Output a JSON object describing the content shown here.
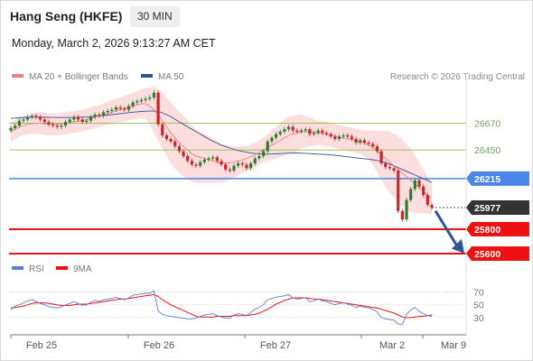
{
  "header": {
    "title": "Hang Seng (HKFE)",
    "interval": "30 MIN",
    "datetime": "Monday, March 2, 2026 9:13:27 AM CET"
  },
  "legend": {
    "ma20": "MA 20 + Bollinger Bands",
    "ma50": "MA 50",
    "research": "Research © 2026 Trading Central"
  },
  "rsi_legend": {
    "rsi": "RSI",
    "ma": "9MA"
  },
  "colors": {
    "ma20": "#f08080",
    "ma50": "#2f5597",
    "candle_up": "#2e7d32",
    "candle_down": "#c62828",
    "support": "#ee1111",
    "pivot": "#4a86e8",
    "resistance": "#8bc34a",
    "bands": "#fbd3d3",
    "rsi": "#5b7fe0"
  },
  "chart_data": [
    {
      "type": "candlestick",
      "title": "Hang Seng (HKFE)",
      "ylim": [
        25570,
        26940
      ],
      "x_ticks": [
        "Feb 25",
        "Feb 26",
        "Feb 27",
        "Mar 2",
        "Mar 9"
      ],
      "levels": [
        {
          "value": 26670,
          "label": "26670",
          "kind": "resistance"
        },
        {
          "value": 26450,
          "label": "26450",
          "kind": "resistance"
        },
        {
          "value": 26215,
          "label": "26215",
          "kind": "pivot"
        },
        {
          "value": 25977,
          "label": "25977",
          "kind": "last"
        },
        {
          "value": 25800,
          "label": "25800",
          "kind": "support"
        },
        {
          "value": 25600,
          "label": "25600",
          "kind": "support"
        }
      ],
      "close": [
        26630,
        26650,
        26690,
        26700,
        26720,
        26730,
        26720,
        26700,
        26680,
        26660,
        26650,
        26640,
        26650,
        26680,
        26700,
        26720,
        26700,
        26680,
        26690,
        26720,
        26740,
        26730,
        26760,
        26770,
        26780,
        26800,
        26790,
        26780,
        26810,
        26840,
        26850,
        26860,
        26870,
        26880,
        26920,
        26660,
        26570,
        26540,
        26520,
        26480,
        26440,
        26400,
        26360,
        26330,
        26320,
        26350,
        26370,
        26380,
        26390,
        26360,
        26330,
        26290,
        26280,
        26320,
        26340,
        26330,
        26300,
        26340,
        26380,
        26400,
        26440,
        26520,
        26550,
        26580,
        26600,
        26620,
        26640,
        26610,
        26600,
        26610,
        26620,
        26580,
        26590,
        26610,
        26590,
        26580,
        26560,
        26540,
        26560,
        26570,
        26560,
        26540,
        26510,
        26530,
        26510,
        26500,
        26480,
        26440,
        26340,
        26310,
        26300,
        26280,
        25950,
        25880,
        26040,
        26130,
        26200,
        26150,
        26080,
        26000,
        25977
      ],
      "ma20": [
        26600,
        26620,
        26640,
        26650,
        26660,
        26665,
        26670,
        26670,
        26665,
        26660,
        26660,
        26660,
        26665,
        26670,
        26675,
        26680,
        26685,
        26690,
        26700,
        26710,
        26720,
        26730,
        26740,
        26750,
        26760,
        26770,
        26780,
        26790,
        26800,
        26810,
        26820,
        26830,
        26830,
        26810,
        26780,
        26740,
        26690,
        26640,
        26590,
        26550,
        26510,
        26480,
        26450,
        26420,
        26400,
        26390,
        26380,
        26370,
        26360,
        26350,
        26340,
        26340,
        26345,
        26350,
        26360,
        26370,
        26380,
        26395,
        26410,
        26430,
        26450,
        26470,
        26490,
        26510,
        26530,
        26550,
        26570,
        26580,
        26590,
        26600,
        26600,
        26600,
        26595,
        26590,
        26585,
        26580,
        26575,
        26565,
        26555,
        26545,
        26540,
        26535,
        26525,
        26515,
        26505,
        26490,
        26470,
        26440,
        26410,
        26380,
        26350,
        26320,
        26290,
        26260,
        26230,
        26200,
        26170,
        26140,
        26110,
        26080,
        26050
      ],
      "bb_width": [
        80,
        80,
        80,
        80,
        80,
        85,
        90,
        90,
        90,
        90,
        90,
        90,
        90,
        90,
        90,
        90,
        90,
        90,
        90,
        90,
        90,
        90,
        90,
        95,
        100,
        100,
        100,
        105,
        110,
        110,
        115,
        120,
        130,
        150,
        190,
        210,
        230,
        240,
        250,
        250,
        250,
        250,
        240,
        230,
        220,
        210,
        200,
        190,
        180,
        170,
        160,
        150,
        140,
        130,
        120,
        110,
        100,
        100,
        100,
        100,
        100,
        110,
        120,
        130,
        140,
        150,
        150,
        150,
        150,
        140,
        130,
        120,
        110,
        100,
        100,
        100,
        100,
        100,
        100,
        100,
        100,
        100,
        100,
        100,
        110,
        120,
        140,
        170,
        200,
        230,
        250,
        260,
        270,
        270,
        270,
        260,
        240,
        210,
        180,
        150,
        130
      ],
      "ma50": [
        26710,
        26712,
        26714,
        26716,
        26718,
        26719,
        26720,
        26720,
        26719,
        26718,
        26717,
        26716,
        26716,
        26716,
        26716,
        26717,
        26718,
        26719,
        26720,
        26722,
        26725,
        26728,
        26732,
        26736,
        26740,
        26744,
        26748,
        26752,
        26756,
        26760,
        26763,
        26766,
        26768,
        26769,
        26770,
        26765,
        26755,
        26740,
        26722,
        26702,
        26680,
        26660,
        26640,
        26620,
        26600,
        26580,
        26560,
        26540,
        26523,
        26506,
        26490,
        26478,
        26466,
        26455,
        26446,
        26438,
        26432,
        26426,
        26421,
        26418,
        26416,
        26416,
        26417,
        26418,
        26420,
        26422,
        26424,
        26425,
        26425,
        26424,
        26422,
        26420,
        26418,
        26416,
        26414,
        26412,
        26410,
        26406,
        26402,
        26398,
        26394,
        26390,
        26386,
        26382,
        26378,
        26374,
        26370,
        26364,
        26355,
        26345,
        26334,
        26320,
        26306,
        26290,
        26275,
        26260,
        26245,
        26230,
        26215,
        26200,
        26185
      ]
    },
    {
      "type": "line",
      "title": "RSI",
      "ylim": [
        10,
        85
      ],
      "y_ticks": [
        70,
        50,
        30
      ],
      "series": [
        {
          "name": "RSI",
          "values": [
            42,
            48,
            50,
            53,
            56,
            58,
            55,
            52,
            50,
            47,
            46,
            45,
            47,
            50,
            52,
            55,
            52,
            49,
            50,
            54,
            57,
            55,
            58,
            59,
            60,
            62,
            60,
            58,
            61,
            65,
            66,
            67,
            68,
            68,
            72,
            40,
            35,
            33,
            32,
            31,
            30,
            29,
            28,
            28,
            29,
            32,
            34,
            35,
            36,
            33,
            31,
            29,
            29,
            34,
            36,
            35,
            33,
            38,
            43,
            46,
            50,
            58,
            60,
            62,
            63,
            64,
            66,
            61,
            59,
            60,
            61,
            55,
            56,
            59,
            56,
            55,
            52,
            50,
            52,
            53,
            51,
            49,
            46,
            48,
            46,
            45,
            43,
            39,
            30,
            28,
            27,
            26,
            20,
            19,
            35,
            42,
            46,
            40,
            36,
            33,
            32
          ]
        },
        {
          "name": "9MA",
          "values": [
            45,
            46,
            47,
            48,
            50,
            52,
            53,
            53,
            53,
            52,
            51,
            50,
            49,
            49,
            49,
            50,
            51,
            51,
            51,
            52,
            53,
            54,
            55,
            56,
            57,
            58,
            59,
            59,
            60,
            61,
            62,
            63,
            64,
            65,
            66,
            63,
            58,
            54,
            50,
            47,
            44,
            41,
            38,
            35,
            32,
            31,
            31,
            31,
            31,
            32,
            32,
            32,
            32,
            33,
            33,
            33,
            33,
            34,
            35,
            37,
            40,
            43,
            47,
            51,
            54,
            57,
            59,
            61,
            61,
            61,
            61,
            60,
            59,
            59,
            58,
            57,
            56,
            55,
            54,
            53,
            52,
            51,
            50,
            49,
            48,
            47,
            46,
            45,
            43,
            41,
            39,
            37,
            34,
            31,
            30,
            30,
            31,
            32,
            32,
            33,
            34
          ]
        }
      ]
    }
  ]
}
